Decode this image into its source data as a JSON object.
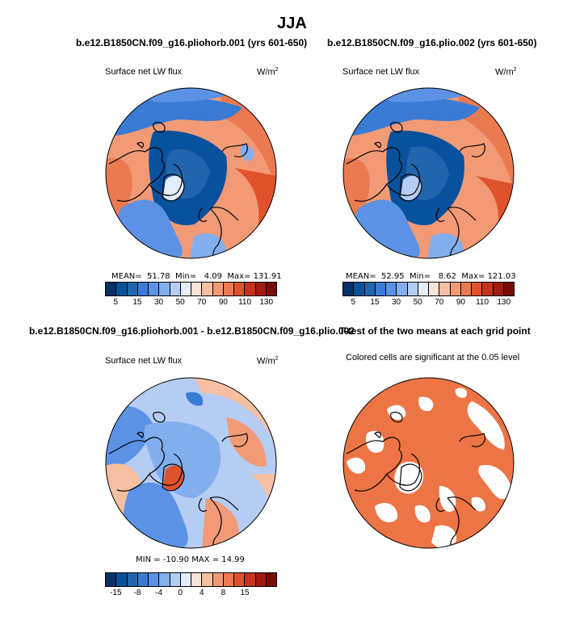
{
  "figure": {
    "title": "JJA"
  },
  "panels": [
    {
      "title": "b.e12.B1850CN.f09_g16.pliohorb.001 (yrs 601-650)",
      "left_label": "Surface net LW flux",
      "units": "W/m",
      "units_sup": "2",
      "stats": {
        "mean_label": "MEAN=",
        "mean": "51.78",
        "min_label": "Min=",
        "min": "4.09",
        "max_label": "Max=",
        "max": "131.91"
      }
    },
    {
      "title": "b.e12.B1850CN.f09_g16.plio.002 (yrs 601-650)",
      "left_label": "Surface net LW flux",
      "units": "W/m",
      "units_sup": "2",
      "stats": {
        "mean_label": "MEAN=",
        "mean": "52.95",
        "min_label": "Min=",
        "min": "8.62",
        "max_label": "Max=",
        "max": "121.03"
      }
    },
    {
      "title": "b.e12.B1850CN.f09_g16.pliohorb.001 - b.e12.B1850CN.f09_g16.plio.002",
      "left_label": "Surface net LW flux",
      "units": "W/m",
      "units_sup": "2",
      "stats": {
        "text": "MIN = -10.90  MAX =  14.99"
      }
    },
    {
      "title": "T-test of the two means at each grid point",
      "subtitle": "Colored cells are significant at the 0.05 level"
    }
  ],
  "chart_data": [
    {
      "type": "heatmap",
      "projection": "north polar stereographic",
      "variable": "Surface net LW flux",
      "units": "W/m2",
      "stats": {
        "mean": 51.78,
        "min": 4.09,
        "max": 131.91
      },
      "colorbar": {
        "tick_labels": [
          "5",
          "15",
          "30",
          "50",
          "70",
          "90",
          "110",
          "130"
        ],
        "colors": [
          "#08306b",
          "#08519c",
          "#2166ac",
          "#3a7bd5",
          "#5b92e5",
          "#82aeed",
          "#b6cdf3",
          "#e4eefa",
          "#fbe3d6",
          "#f7bfa2",
          "#f29a76",
          "#ec7a50",
          "#e0522b",
          "#c7331a",
          "#a21a10",
          "#7a0c05"
        ]
      }
    },
    {
      "type": "heatmap",
      "projection": "north polar stereographic",
      "variable": "Surface net LW flux",
      "units": "W/m2",
      "stats": {
        "mean": 52.95,
        "min": 8.62,
        "max": 121.03
      },
      "colorbar": {
        "tick_labels": [
          "5",
          "15",
          "30",
          "50",
          "70",
          "90",
          "110",
          "130"
        ],
        "colors": [
          "#08306b",
          "#08519c",
          "#2166ac",
          "#3a7bd5",
          "#5b92e5",
          "#82aeed",
          "#b6cdf3",
          "#e4eefa",
          "#fbe3d6",
          "#f7bfa2",
          "#f29a76",
          "#ec7a50",
          "#e0522b",
          "#c7331a",
          "#a21a10",
          "#7a0c05"
        ]
      }
    },
    {
      "type": "heatmap",
      "projection": "north polar stereographic",
      "variable": "Surface net LW flux difference",
      "units": "W/m2",
      "stats": {
        "min": -10.9,
        "max": 14.99
      },
      "colorbar": {
        "tick_labels": [
          "-15",
          "-8",
          "-4",
          "0",
          "4",
          "8",
          "15"
        ],
        "colors": [
          "#08306b",
          "#08519c",
          "#2166ac",
          "#3a7bd5",
          "#5b92e5",
          "#82aeed",
          "#b6cdf3",
          "#e4eefa",
          "#fbe3d6",
          "#f7bfa2",
          "#f29a76",
          "#ec7a50",
          "#e0522b",
          "#c7331a",
          "#a21a10",
          "#7a0c05"
        ]
      }
    },
    {
      "type": "heatmap",
      "projection": "north polar stereographic",
      "description": "significance mask",
      "significant_color": "#ed7445",
      "alpha": 0.05
    }
  ],
  "colors": {
    "land_outline": "#000000",
    "significant": "#ed7445"
  }
}
